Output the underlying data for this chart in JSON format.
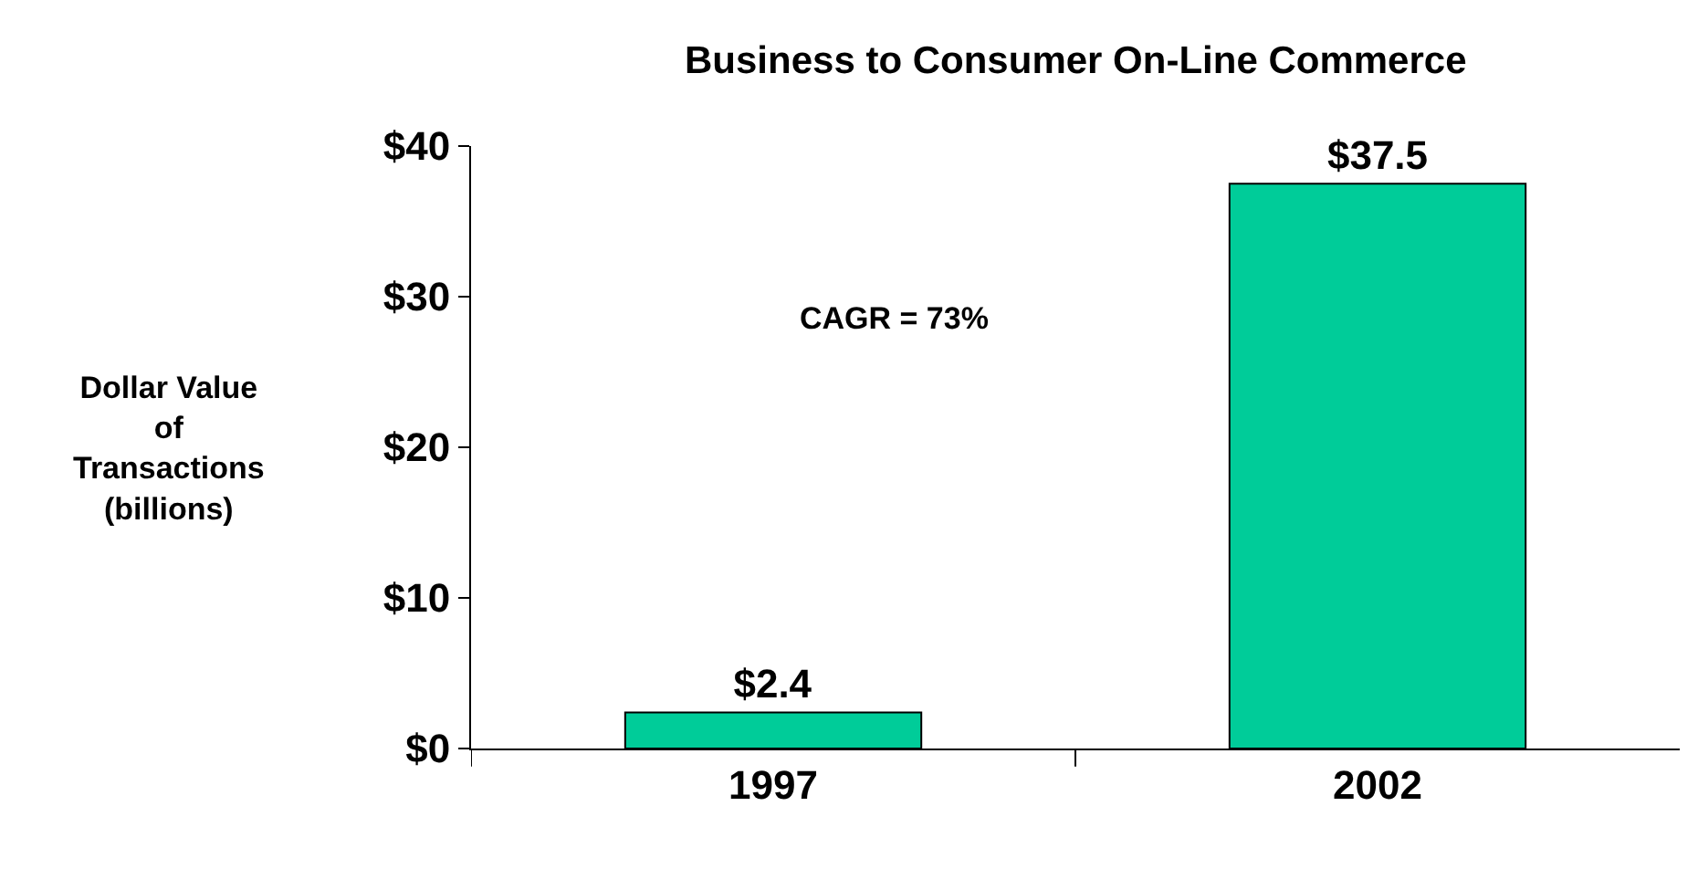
{
  "chart_data": {
    "type": "bar",
    "title": "Business to Consumer On-Line Commerce",
    "ylabel": "Dollar Value\nof\nTransactions\n(billions)",
    "categories": [
      "1997",
      "2002"
    ],
    "values": [
      2.4,
      37.5
    ],
    "value_labels": [
      "$2.4",
      "$37.5"
    ],
    "color": "#00cc99",
    "ylim": [
      0,
      40
    ],
    "yticks": [
      {
        "value": 0,
        "label": "$0"
      },
      {
        "value": 10,
        "label": "$10"
      },
      {
        "value": 20,
        "label": "$20"
      },
      {
        "value": 30,
        "label": "$30"
      },
      {
        "value": 40,
        "label": "$40"
      }
    ],
    "annotations": [
      "CAGR = 73%"
    ]
  }
}
